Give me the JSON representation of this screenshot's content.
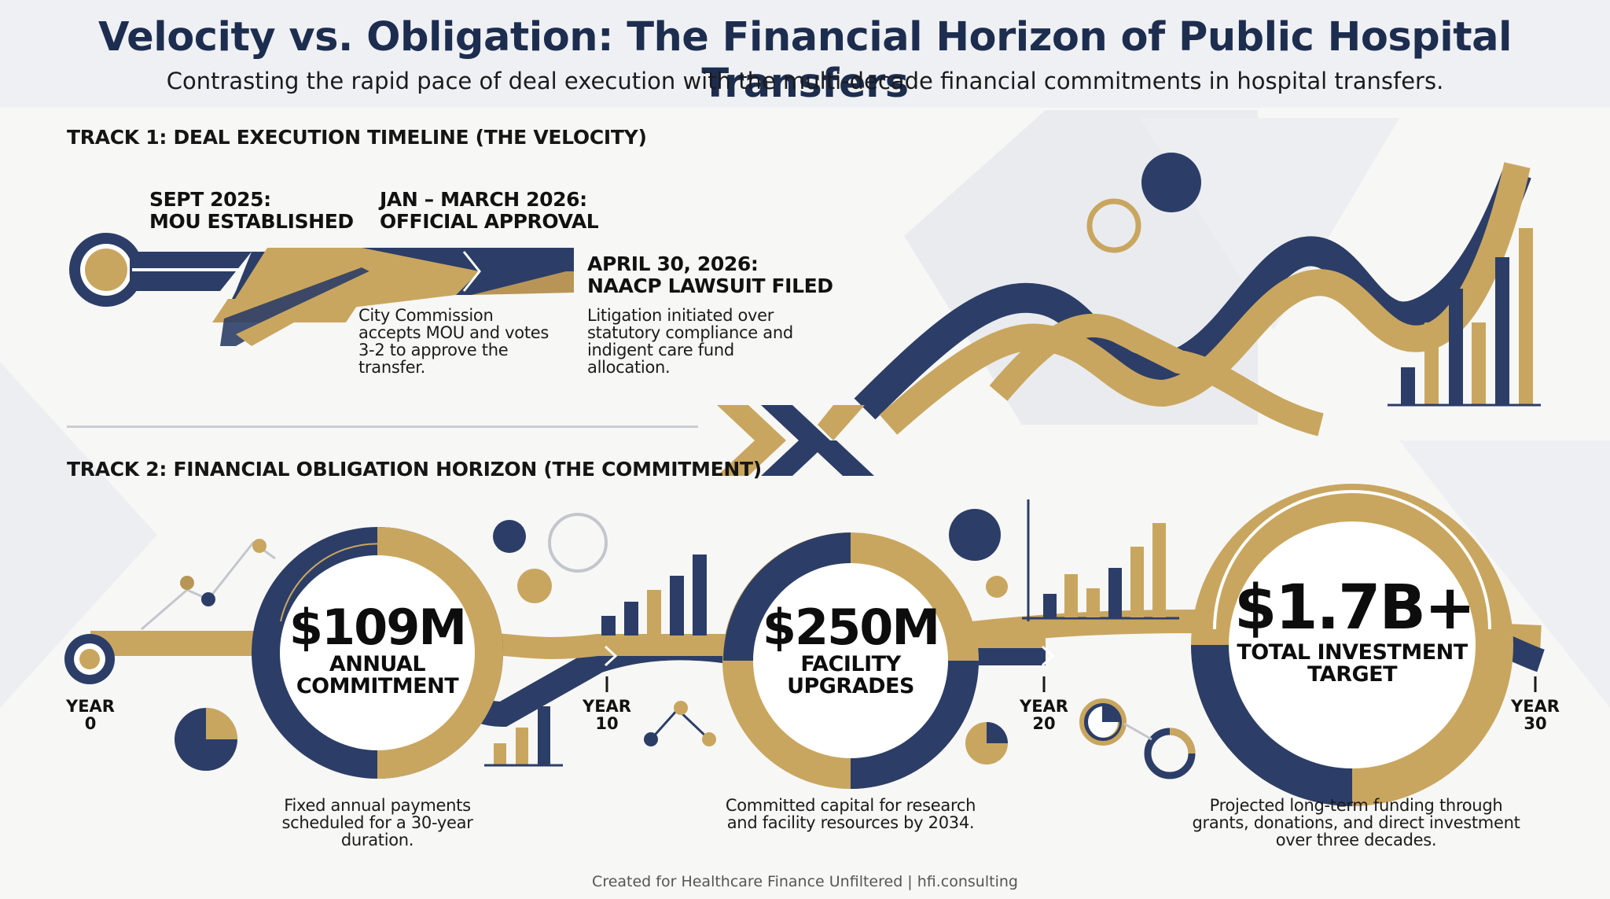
{
  "header": {
    "title": "Velocity vs. Obligation: The Financial Horizon of Public Hospital Transfers",
    "subtitle": "Contrasting the rapid pace of deal execution with the multi-decade financial commitments in hospital transfers."
  },
  "track1": {
    "heading": "TRACK 1: DEAL EXECUTION TIMELINE (THE VELOCITY)",
    "milestones": [
      {
        "line1": "SEPT 2025:",
        "line2": "MOU ESTABLISHED"
      },
      {
        "line1": "JAN – MARCH 2026:",
        "line2": "OFFICIAL APPROVAL",
        "desc": [
          "City Commission",
          "accepts MOU and votes",
          "3-2 to approve the",
          "transfer."
        ]
      },
      {
        "line1": "APRIL 30, 2026:",
        "line2": "NAACP LAWSUIT FILED",
        "desc": [
          "Litigation initiated over",
          "statutory compliance and",
          "indigent care fund",
          "allocation."
        ]
      }
    ]
  },
  "track2": {
    "heading": "TRACK 2: FINANCIAL OBLIGATION HORIZON (THE COMMITMENT)",
    "years": [
      {
        "label": "YEAR",
        "num": "0"
      },
      {
        "label": "YEAR",
        "num": "10"
      },
      {
        "label": "YEAR",
        "num": "20"
      },
      {
        "label": "YEAR",
        "num": "30"
      }
    ],
    "circles": [
      {
        "value": "$109M",
        "cap1": "ANNUAL",
        "cap2": "COMMITMENT",
        "desc": [
          "Fixed annual payments",
          "scheduled for a 30-year",
          "duration."
        ]
      },
      {
        "value": "$250M",
        "cap1": "FACILITY",
        "cap2": "UPGRADES",
        "desc": [
          "Committed capital for research",
          "and facility resources by 2034."
        ]
      },
      {
        "value": "$1.7B+",
        "cap1": "TOTAL INVESTMENT",
        "cap2": "TARGET",
        "desc": [
          "Projected long-term funding through",
          "grants, donations, and direct investment",
          "over three decades."
        ]
      }
    ]
  },
  "footer": {
    "credit": "Created for Healthcare Finance Unfiltered | hfi.consulting"
  },
  "colors": {
    "navy": "#2c3e67",
    "gold": "#c9a65f",
    "title": "#1d2d4f",
    "header_bg": "#eef0f3"
  }
}
